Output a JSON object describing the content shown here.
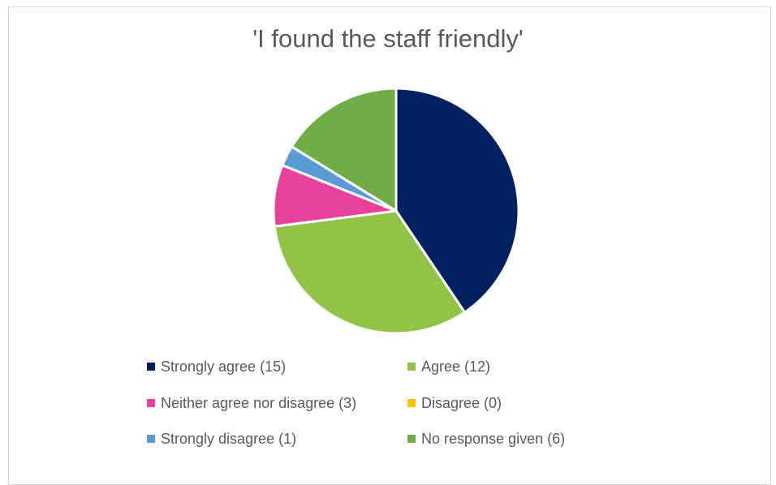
{
  "chart_data": {
    "type": "pie",
    "title": "'I found the staff friendly'",
    "legend_position": "bottom",
    "slices": [
      {
        "label": "Strongly agree (15)",
        "value": 15,
        "color": "#002060"
      },
      {
        "label": "Agree (12)",
        "value": 12,
        "color": "#92c347"
      },
      {
        "label": "Neither agree nor disagree (3)",
        "value": 3,
        "color": "#e8419b"
      },
      {
        "label": "Disagree (0)",
        "value": 0,
        "color": "#ffc000"
      },
      {
        "label": "Strongly disagree (1)",
        "value": 1,
        "color": "#5b9bd5"
      },
      {
        "label": "No response given (6)",
        "value": 6,
        "color": "#70ad47"
      }
    ]
  }
}
